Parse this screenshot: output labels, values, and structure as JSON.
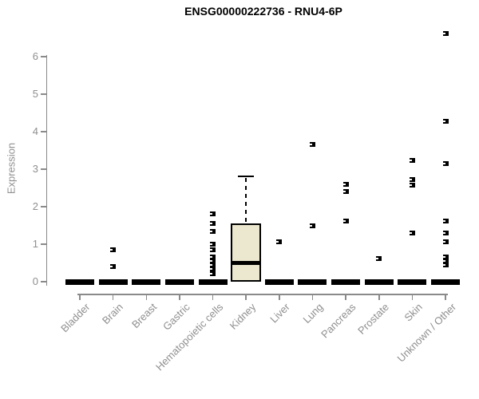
{
  "chart_data": {
    "type": "box",
    "title": "ENSG00000222736 - RNU4-6P",
    "ylabel": "Expression",
    "xlabel": "",
    "ylim": [
      0,
      6.8
    ],
    "yticks": [
      0,
      1,
      2,
      3,
      4,
      5,
      6
    ],
    "grid": false,
    "legend": "none",
    "categories": [
      "Bladder",
      "Brain",
      "Breast",
      "Gastric",
      "Hematopoietic cells",
      "Kidney",
      "Liver",
      "Lung",
      "Pancreas",
      "Prostate",
      "Skin",
      "Unknown / Other"
    ],
    "series": [
      {
        "name": "Bladder",
        "q1": 0,
        "median": 0,
        "q3": 0,
        "whisker_low": 0,
        "whisker_high": 0,
        "outliers": []
      },
      {
        "name": "Brain",
        "q1": 0,
        "median": 0,
        "q3": 0,
        "whisker_low": 0,
        "whisker_high": 0,
        "outliers": [
          0.85,
          0.4
        ]
      },
      {
        "name": "Breast",
        "q1": 0,
        "median": 0,
        "q3": 0,
        "whisker_low": 0,
        "whisker_high": 0,
        "outliers": []
      },
      {
        "name": "Gastric",
        "q1": 0,
        "median": 0,
        "q3": 0,
        "whisker_low": 0,
        "whisker_high": 0,
        "outliers": []
      },
      {
        "name": "Hematopoietic cells",
        "q1": 0,
        "median": 0,
        "q3": 0,
        "whisker_low": 0,
        "whisker_high": 0,
        "outliers": [
          1.8,
          1.55,
          1.33,
          1.01,
          0.85,
          0.65,
          0.55,
          0.44,
          0.33,
          0.21
        ]
      },
      {
        "name": "Kidney",
        "q1": 0,
        "median": 0.5,
        "q3": 1.55,
        "whisker_low": 0,
        "whisker_high": 2.8,
        "outliers": []
      },
      {
        "name": "Liver",
        "q1": 0,
        "median": 0,
        "q3": 0,
        "whisker_low": 0,
        "whisker_high": 0,
        "outliers": [
          1.07
        ]
      },
      {
        "name": "Lung",
        "q1": 0,
        "median": 0,
        "q3": 0,
        "whisker_low": 0,
        "whisker_high": 0,
        "outliers": [
          3.65,
          1.5
        ]
      },
      {
        "name": "Pancreas",
        "q1": 0,
        "median": 0,
        "q3": 0,
        "whisker_low": 0,
        "whisker_high": 0,
        "outliers": [
          2.6,
          2.4,
          1.62
        ]
      },
      {
        "name": "Prostate",
        "q1": 0,
        "median": 0,
        "q3": 0,
        "whisker_low": 0,
        "whisker_high": 0,
        "outliers": [
          0.62
        ]
      },
      {
        "name": "Skin",
        "q1": 0,
        "median": 0,
        "q3": 0,
        "whisker_low": 0,
        "whisker_high": 0,
        "outliers": [
          3.24,
          2.72,
          2.57,
          1.3
        ]
      },
      {
        "name": "Unknown / Other",
        "q1": 0,
        "median": 0,
        "q3": 0,
        "whisker_low": 0,
        "whisker_high": 0,
        "outliers": [
          6.62,
          4.28,
          3.15,
          1.62,
          1.3,
          1.07,
          0.65,
          0.55,
          0.45
        ]
      }
    ],
    "colors": {
      "box_fill": "#ECE7CF",
      "box_border": "#000000",
      "axis": "#8a8a8a",
      "labels": "#8f8f8f",
      "title": "#000000",
      "points": "#000000"
    }
  }
}
